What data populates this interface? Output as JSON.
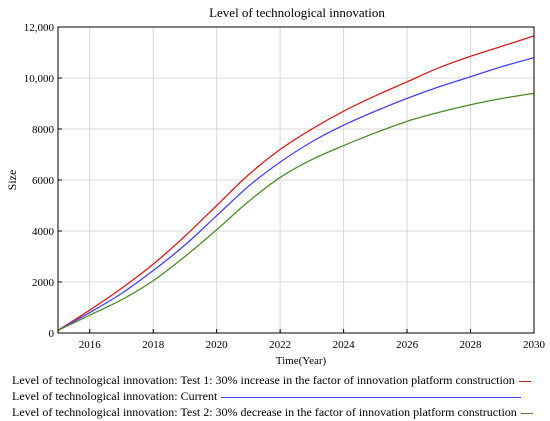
{
  "chart_data": {
    "type": "line",
    "title": "Level of technological innovation",
    "xlabel": "Time(Year)",
    "ylabel": "Size",
    "xlim": [
      2015,
      2030
    ],
    "ylim": [
      0,
      12000
    ],
    "xticks": [
      2016,
      2018,
      2020,
      2022,
      2024,
      2026,
      2028,
      2030
    ],
    "yticks": [
      0,
      2000,
      4000,
      6000,
      8000,
      10000,
      12000
    ],
    "ytick_labels": [
      "0",
      "2000",
      "4000",
      "6000",
      "8000",
      "10,000",
      "12,000"
    ],
    "grid": true,
    "legend_position": "bottom",
    "x": [
      2015,
      2016,
      2017,
      2018,
      2019,
      2020,
      2021,
      2022,
      2023,
      2024,
      2025,
      2026,
      2027,
      2028,
      2029,
      2030
    ],
    "series": [
      {
        "name": "Level of technological innovation: Test 1: 30% increase in the factor of innovation platform construction",
        "color": "#d21f1f",
        "values": [
          100,
          900,
          1750,
          2700,
          3800,
          5000,
          6200,
          7200,
          8000,
          8700,
          9300,
          9850,
          10400,
          10850,
          11250,
          11650
        ]
      },
      {
        "name": "Level of technological innovation: Current",
        "color": "#4444ee",
        "values": [
          100,
          800,
          1550,
          2450,
          3450,
          4600,
          5750,
          6700,
          7500,
          8150,
          8700,
          9200,
          9650,
          10050,
          10450,
          10800
        ]
      },
      {
        "name": "Level of technological innovation: Test 2: 30% decrease in the factor of innovation platform construction",
        "color": "#4f8a2e",
        "values": [
          100,
          700,
          1300,
          2050,
          3000,
          4050,
          5150,
          6100,
          6800,
          7350,
          7850,
          8300,
          8650,
          8950,
          9200,
          9400
        ]
      }
    ]
  }
}
